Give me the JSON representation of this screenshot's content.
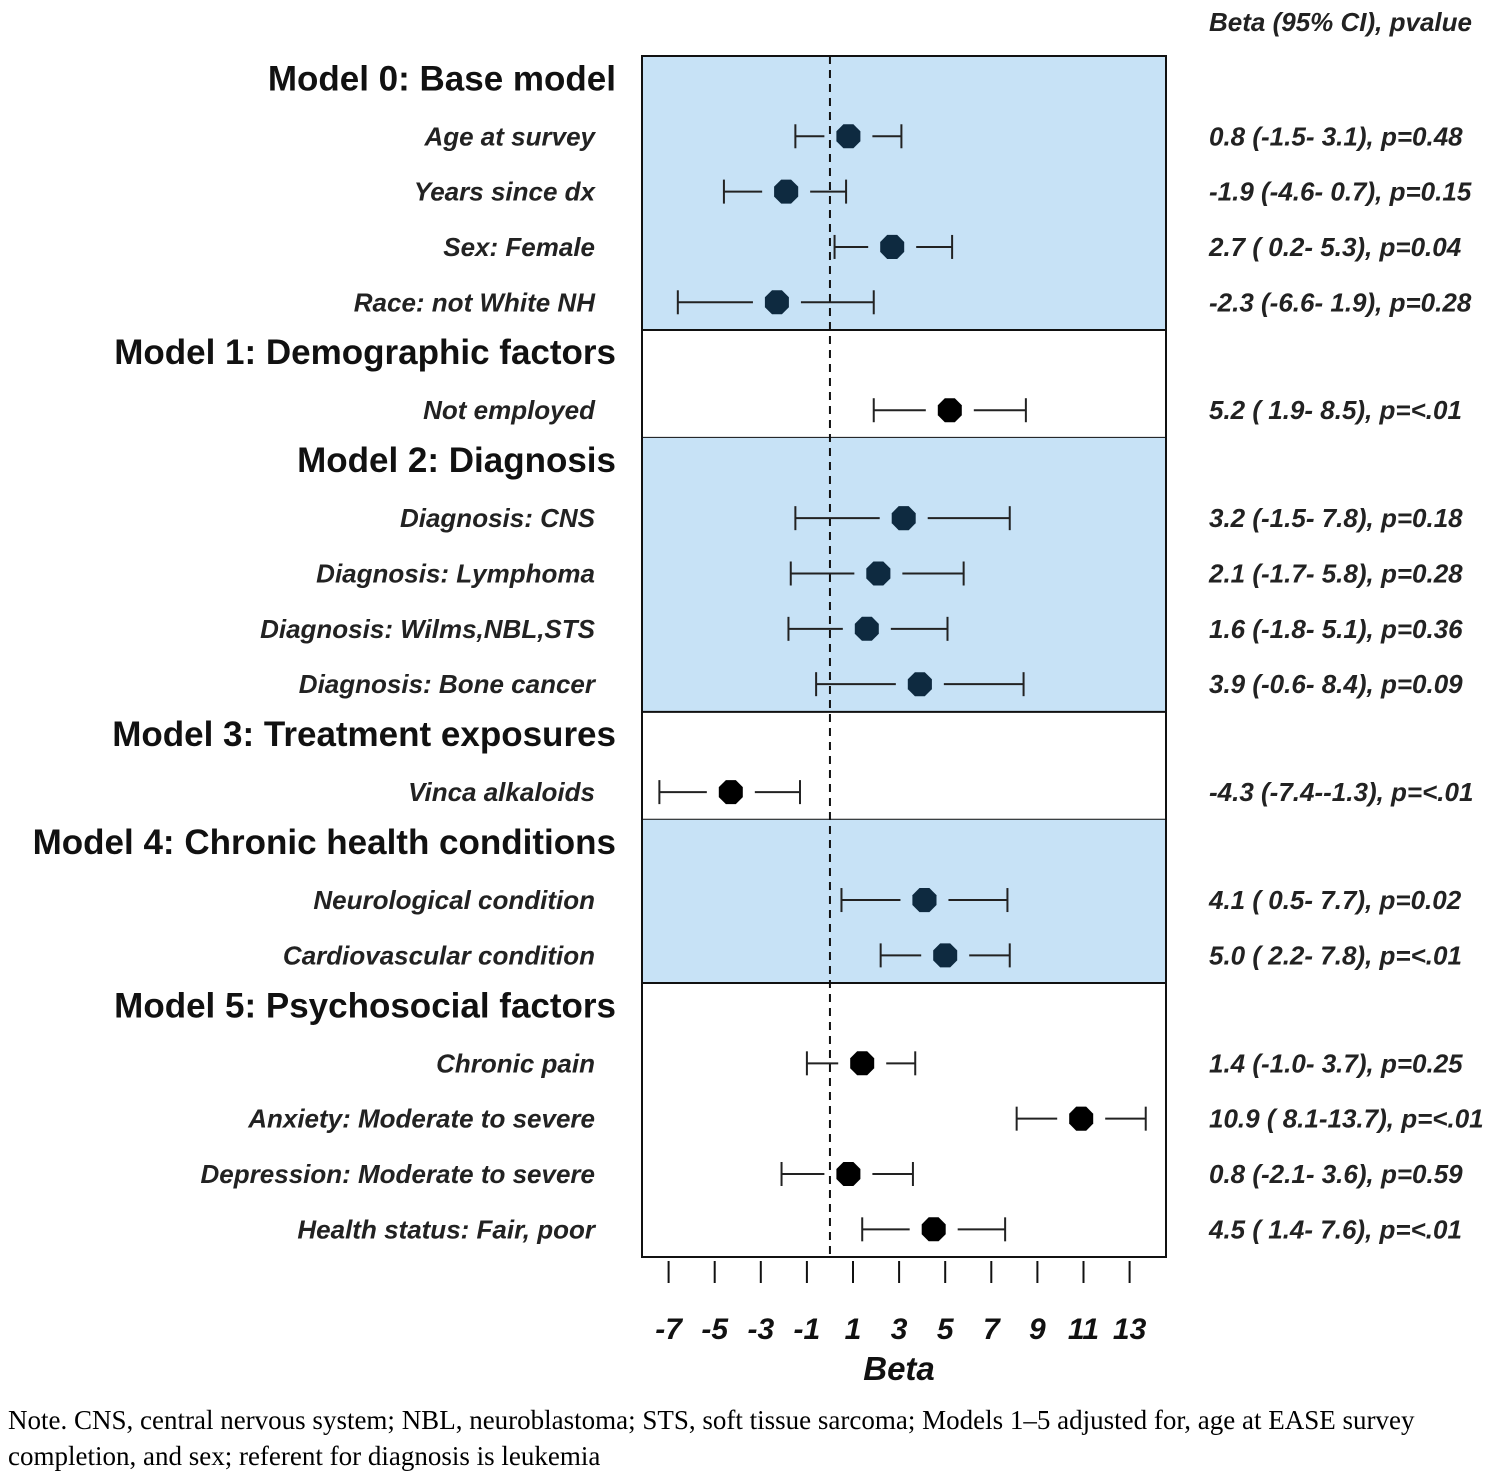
{
  "chart_data": {
    "type": "forest",
    "x_label": "Beta",
    "x_ticks": [
      -7,
      -5,
      -3,
      -1,
      1,
      3,
      5,
      7,
      9,
      11,
      13
    ],
    "x_range": [
      -8.3,
      14.5
    ],
    "reference_line": 0,
    "right_header": "Beta (95% CI), pvalue",
    "colors": {
      "shade": "#c7e2f6",
      "marker_shaded": "#0e2a40",
      "marker_plain": "#000000"
    },
    "groups": [
      {
        "title": "Model 0: Base model",
        "shaded": true,
        "rows": [
          {
            "label": "Age at survey",
            "beta": 0.8,
            "lo": -1.5,
            "hi": 3.1,
            "text": "0.8 (-1.5- 3.1), p=0.48"
          },
          {
            "label": "Years since dx",
            "beta": -1.9,
            "lo": -4.6,
            "hi": 0.7,
            "text": "-1.9 (-4.6- 0.7), p=0.15"
          },
          {
            "label": "Sex: Female",
            "beta": 2.7,
            "lo": 0.2,
            "hi": 5.3,
            "text": "2.7 ( 0.2- 5.3), p=0.04"
          },
          {
            "label": "Race: not White NH",
            "beta": -2.3,
            "lo": -6.6,
            "hi": 1.9,
            "text": "-2.3 (-6.6- 1.9), p=0.28"
          }
        ]
      },
      {
        "title": "Model 1: Demographic factors",
        "shaded": false,
        "rows": [
          {
            "label": "Not employed",
            "beta": 5.2,
            "lo": 1.9,
            "hi": 8.5,
            "text": "5.2 ( 1.9- 8.5), p=<.01"
          }
        ]
      },
      {
        "title": "Model 2: Diagnosis",
        "shaded": true,
        "rows": [
          {
            "label": "Diagnosis: CNS",
            "beta": 3.2,
            "lo": -1.5,
            "hi": 7.8,
            "text": "3.2 (-1.5- 7.8), p=0.18"
          },
          {
            "label": "Diagnosis: Lymphoma",
            "beta": 2.1,
            "lo": -1.7,
            "hi": 5.8,
            "text": "2.1 (-1.7- 5.8), p=0.28"
          },
          {
            "label": "Diagnosis: Wilms,NBL,STS",
            "beta": 1.6,
            "lo": -1.8,
            "hi": 5.1,
            "text": "1.6 (-1.8- 5.1), p=0.36"
          },
          {
            "label": "Diagnosis: Bone cancer",
            "beta": 3.9,
            "lo": -0.6,
            "hi": 8.4,
            "text": "3.9 (-0.6- 8.4), p=0.09"
          }
        ]
      },
      {
        "title": "Model 3: Treatment exposures",
        "shaded": false,
        "rows": [
          {
            "label": "Vinca alkaloids",
            "beta": -4.3,
            "lo": -7.4,
            "hi": -1.3,
            "text": "-4.3 (-7.4--1.3), p=<.01"
          }
        ]
      },
      {
        "title": "Model 4: Chronic health conditions",
        "shaded": true,
        "rows": [
          {
            "label": "Neurological condition",
            "beta": 4.1,
            "lo": 0.5,
            "hi": 7.7,
            "text": "4.1 ( 0.5- 7.7), p=0.02"
          },
          {
            "label": "Cardiovascular condition",
            "beta": 5.0,
            "lo": 2.2,
            "hi": 7.8,
            "text": "5.0 ( 2.2- 7.8), p=<.01"
          }
        ]
      },
      {
        "title": "Model 5: Psychosocial factors",
        "shaded": false,
        "rows": [
          {
            "label": "Chronic pain",
            "beta": 1.4,
            "lo": -1.0,
            "hi": 3.7,
            "text": "1.4 (-1.0- 3.7), p=0.25"
          },
          {
            "label": "Anxiety: Moderate to severe",
            "beta": 10.9,
            "lo": 8.1,
            "hi": 13.7,
            "text": "10.9 ( 8.1-13.7), p=<.01"
          },
          {
            "label": "Depression: Moderate to severe",
            "beta": 0.8,
            "lo": -2.1,
            "hi": 3.6,
            "text": "0.8 (-2.1- 3.6), p=0.59"
          },
          {
            "label": "Health status: Fair, poor",
            "beta": 4.5,
            "lo": 1.4,
            "hi": 7.6,
            "text": "4.5 ( 1.4- 7.6), p=<.01"
          }
        ]
      }
    ]
  },
  "note": "Note. CNS, central nervous system; NBL, neuroblastoma; STS, soft tissue sarcoma; Models 1–5 adjusted for, age at EASE survey completion, and sex; referent for diagnosis is leukemia"
}
